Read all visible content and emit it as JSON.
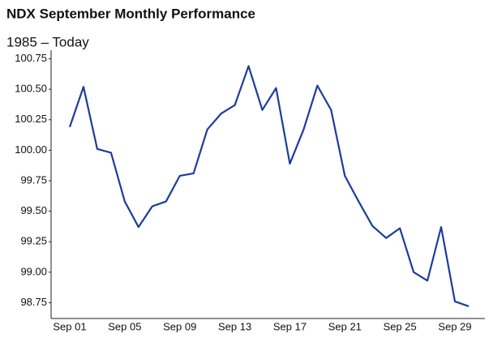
{
  "chart_data": {
    "type": "line",
    "title": "NDX September Monthly Performance",
    "subtitle": "1985 – Today",
    "categories": [
      "Sep 01",
      null,
      null,
      null,
      "Sep 05",
      null,
      null,
      null,
      "Sep 09",
      null,
      null,
      null,
      "Sep 13",
      null,
      null,
      null,
      "Sep 17",
      null,
      null,
      null,
      "Sep 21",
      null,
      null,
      null,
      "Sep 25",
      null,
      null,
      null,
      "Sep 29",
      null
    ],
    "values": [
      100.19,
      100.52,
      100.01,
      99.98,
      99.58,
      99.37,
      99.54,
      99.58,
      99.79,
      99.81,
      100.17,
      100.3,
      100.37,
      100.69,
      100.33,
      100.51,
      99.89,
      100.17,
      100.53,
      100.33,
      99.79,
      99.58,
      99.38,
      99.28,
      99.36,
      99.0,
      98.93,
      99.37,
      98.76,
      98.72
    ],
    "color": "#1c3d99",
    "ylim": [
      98.62,
      100.82
    ],
    "yticks": [
      98.75,
      {
        "value": 99,
        "label": "99.00"
      },
      99.25,
      {
        "value": 99.5,
        "label": "99.50"
      },
      99.75,
      {
        "value": 100,
        "label": "100.00"
      },
      100.25,
      {
        "value": 100.5,
        "label": "100.50"
      },
      100.75
    ]
  }
}
